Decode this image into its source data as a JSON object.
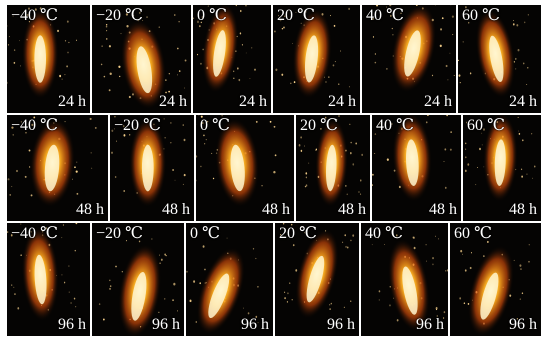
{
  "figure": {
    "rows": [
      {
        "panels": [
          {
            "temperature": "−40 ℃",
            "duration": "24 h"
          },
          {
            "temperature": "−20 ℃",
            "duration": "24 h"
          },
          {
            "temperature": "0 ℃",
            "duration": "24 h"
          },
          {
            "temperature": "20 ℃",
            "duration": "24 h"
          },
          {
            "temperature": "40 ℃",
            "duration": "24 h"
          },
          {
            "temperature": "60 ℃",
            "duration": "24 h"
          }
        ]
      },
      {
        "panels": [
          {
            "temperature": "−40 ℃",
            "duration": "48 h"
          },
          {
            "temperature": "−20 ℃",
            "duration": "48 h"
          },
          {
            "temperature": "0 ℃",
            "duration": "48 h"
          },
          {
            "temperature": "20 ℃",
            "duration": "48 h"
          },
          {
            "temperature": "40 ℃",
            "duration": "48 h"
          },
          {
            "temperature": "60 ℃",
            "duration": "48 h"
          }
        ]
      },
      {
        "panels": [
          {
            "temperature": "−40 ℃",
            "duration": "96 h"
          },
          {
            "temperature": "−20 ℃",
            "duration": "96 h"
          },
          {
            "temperature": "0 ℃",
            "duration": "96 h"
          },
          {
            "temperature": "20 ℃",
            "duration": "96 h"
          },
          {
            "temperature": "40 ℃",
            "duration": "96 h"
          },
          {
            "temperature": "60 ℃",
            "duration": "96 h"
          }
        ]
      }
    ],
    "colors": {
      "background": "#050403",
      "flame_core": "#fff6d0",
      "flame_mid": "#ffb020",
      "flame_outer": "#e0500a",
      "spark": "#ffd890",
      "label": "#ffffff"
    }
  }
}
